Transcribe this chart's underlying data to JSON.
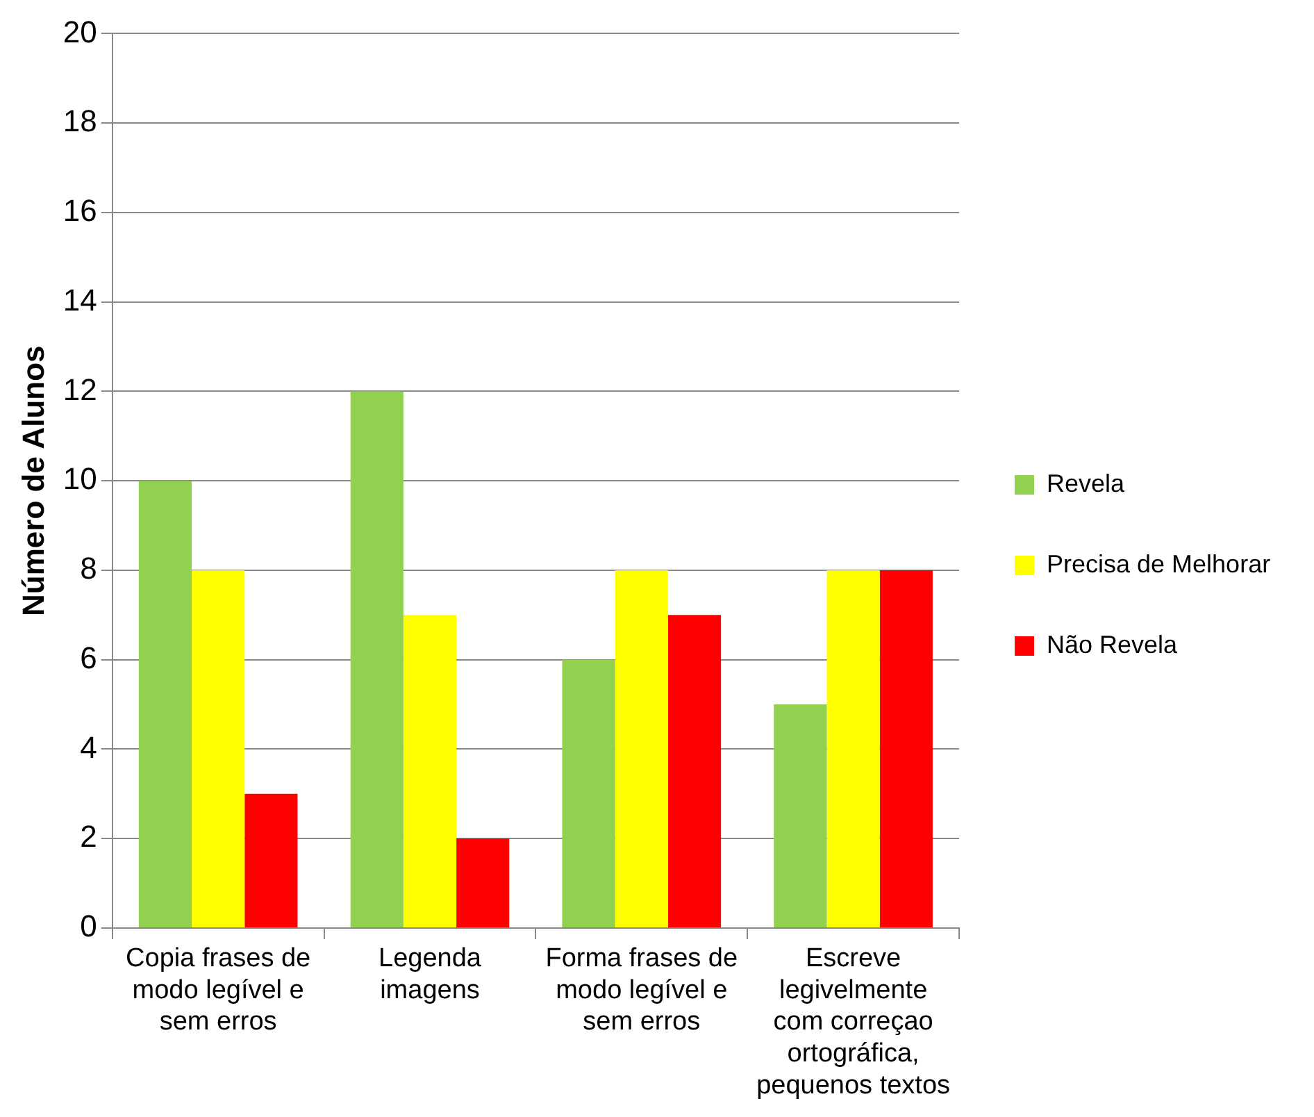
{
  "chart_data": {
    "type": "bar",
    "ylabel": "Número de Alunos",
    "categories": [
      "Copia frases de modo legível e sem erros",
      "Legenda imagens",
      "Forma frases de modo legível e sem erros",
      "Escreve legivelmente com correçao ortográfica, pequenos textos"
    ],
    "series": [
      {
        "name": "Revela",
        "color": "#92d050",
        "values": [
          10,
          12,
          6,
          5
        ]
      },
      {
        "name": "Precisa de Melhorar",
        "color": "#ffff00",
        "values": [
          8,
          7,
          8,
          8
        ]
      },
      {
        "name": "Não Revela",
        "color": "#ff0000",
        "values": [
          3,
          2,
          7,
          8
        ]
      }
    ],
    "ylim": [
      0,
      20
    ],
    "yticks": [
      0,
      2,
      4,
      6,
      8,
      10,
      12,
      14,
      16,
      18,
      20
    ],
    "grid": "y",
    "legend": "right"
  }
}
